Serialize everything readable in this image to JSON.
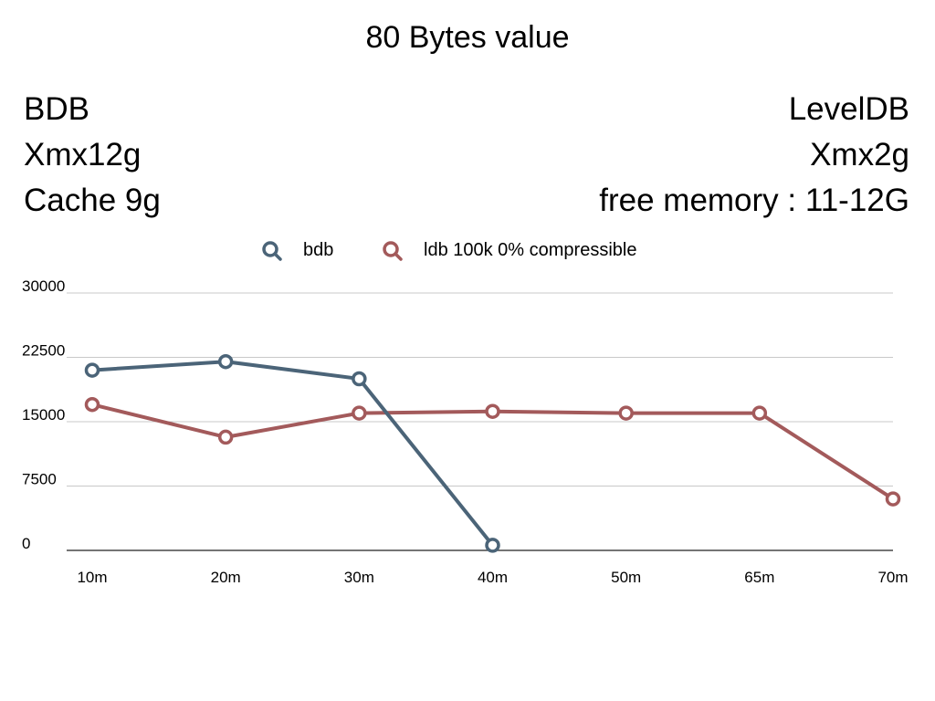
{
  "slide": {
    "title": "80 Bytes value",
    "left_info": [
      "BDB",
      "Xmx12g",
      "Cache 9g"
    ],
    "right_info": [
      "LevelDB",
      "Xmx2g",
      "free memory : 11-12G"
    ]
  },
  "chart_data": {
    "type": "line",
    "title": "",
    "xlabel": "",
    "ylabel": "",
    "categories": [
      "10m",
      "20m",
      "30m",
      "40m",
      "50m",
      "65m",
      "70m"
    ],
    "ylim": [
      0,
      30000
    ],
    "yticks": [
      0,
      7500,
      15000,
      22500,
      30000
    ],
    "grid": true,
    "legend_position": "top",
    "series": [
      {
        "name": "bdb",
        "color": "#4b6478",
        "values": [
          21000,
          22000,
          20000,
          600,
          null,
          null,
          null
        ]
      },
      {
        "name": "ldb 100k 0% compressible",
        "color": "#a35a5b",
        "values": [
          17000,
          13200,
          16000,
          16200,
          16000,
          16000,
          6000
        ]
      }
    ]
  }
}
